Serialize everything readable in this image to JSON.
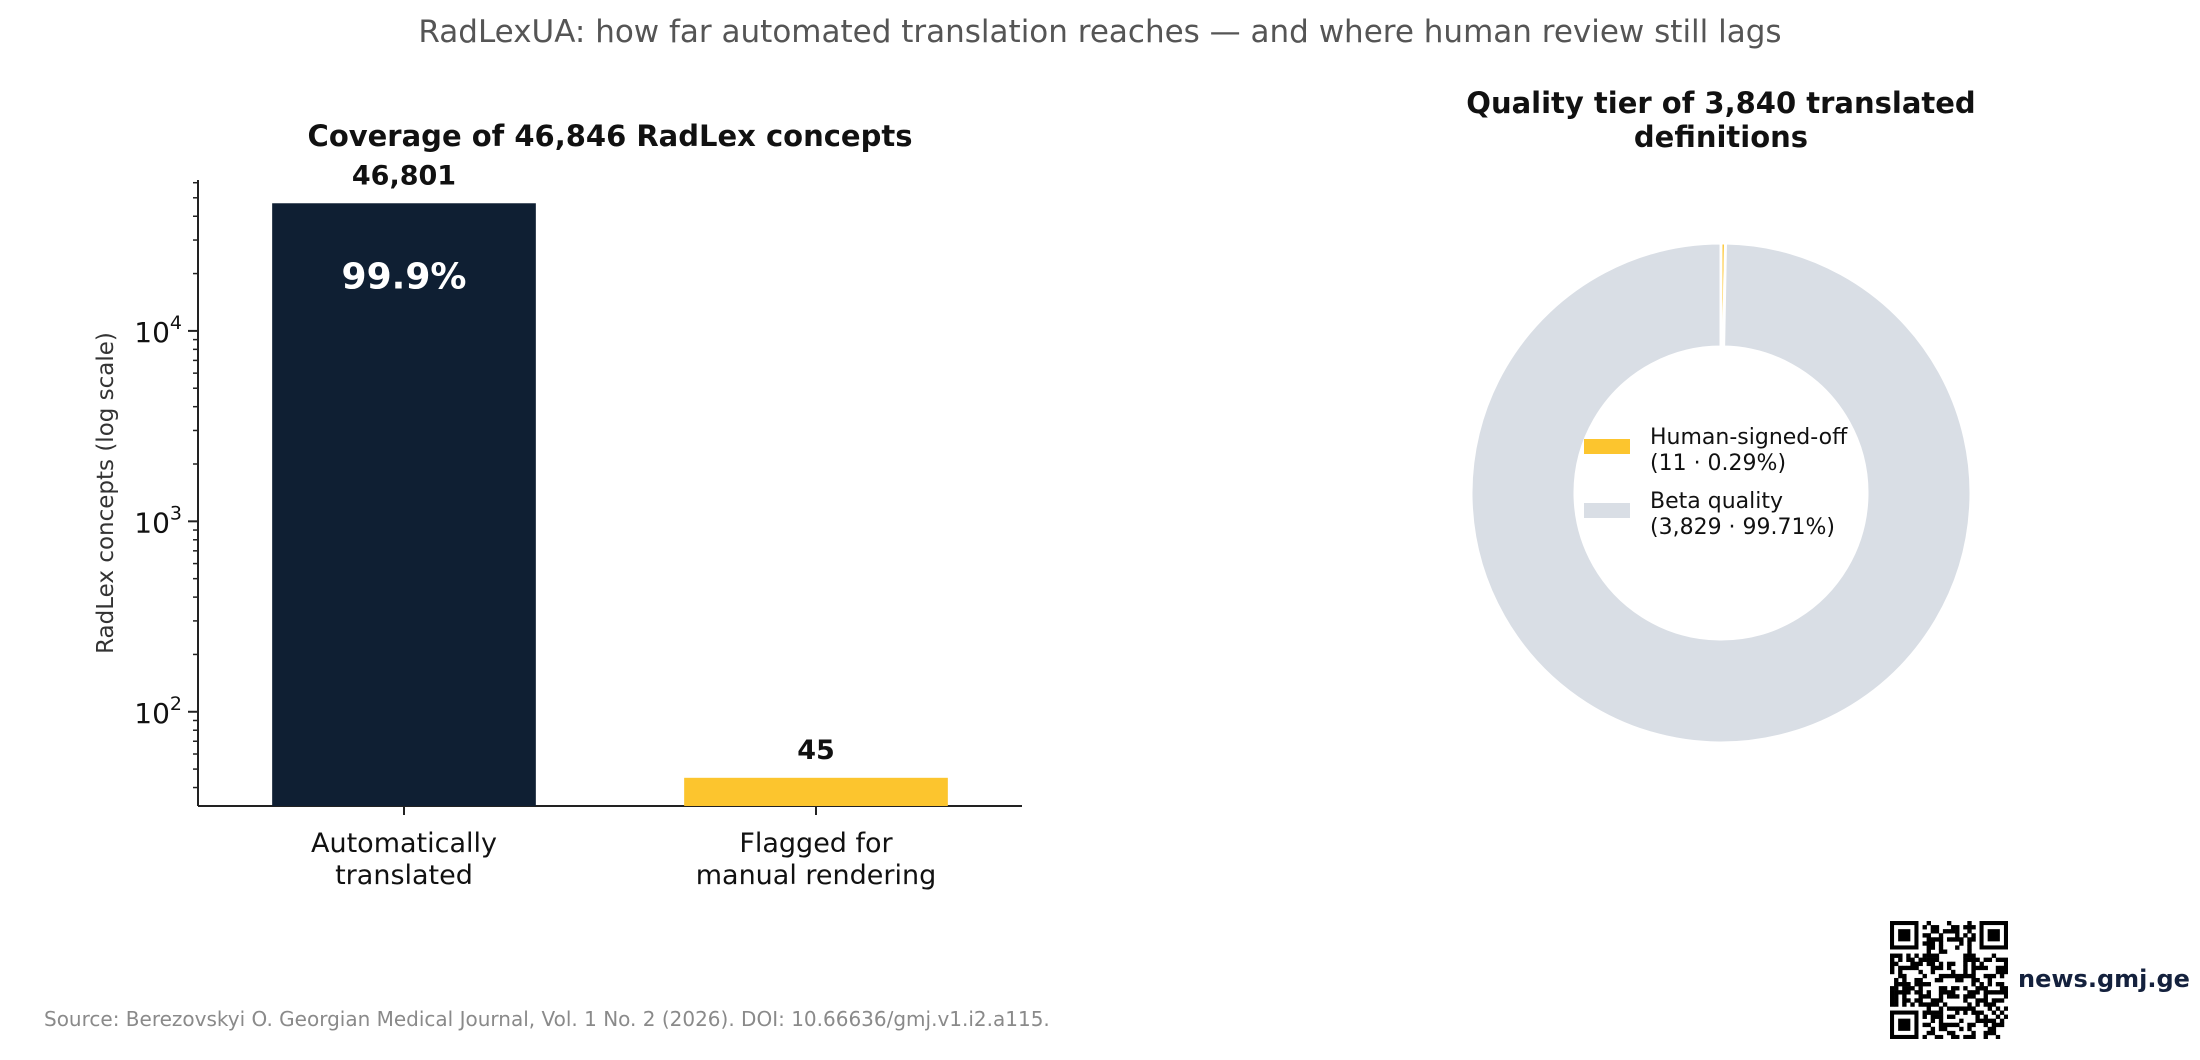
{
  "suptitle": "RadLexUA: how far automated translation reaches — and where human review still lags",
  "chart_data": [
    {
      "type": "bar",
      "title": "Coverage of 46,846 RadLex concepts",
      "ylabel": "RadLex concepts (log scale)",
      "yscale": "log",
      "ylim": [
        32,
        62000
      ],
      "yticks": [
        {
          "value": 100,
          "base": "10",
          "exp": "2"
        },
        {
          "value": 1000,
          "base": "10",
          "exp": "3"
        },
        {
          "value": 10000,
          "base": "10",
          "exp": "4"
        }
      ],
      "categories": [
        [
          "Automatically",
          "translated"
        ],
        [
          "Flagged for",
          "manual rendering"
        ]
      ],
      "values": [
        46801,
        45
      ],
      "value_labels": [
        "46,801",
        "45"
      ],
      "inner_labels": [
        "99.9%",
        ""
      ],
      "colors": [
        "#0f1f33",
        "#fcc52e"
      ],
      "grid": false
    },
    {
      "type": "pie",
      "title": [
        "Quality tier of 3,840 translated",
        "definitions"
      ],
      "donut": true,
      "slices": [
        {
          "label": [
            "Human-signed-off",
            "(11 · 0.29%)"
          ],
          "value": 11,
          "color": "#fcc52e"
        },
        {
          "label": [
            "Beta quality",
            "(3,829 · 99.71%)"
          ],
          "value": 3829,
          "color": "#d9dee5"
        }
      ],
      "legend": "center"
    }
  ],
  "source": "Source: Berezovskyi O. Georgian Medical Journal, Vol. 1 No. 2 (2026). DOI: 10.66636/gmj.v1.i2.a115.",
  "brand": {
    "site": "news.gmj.ge",
    "qr_icon": "qr-code-icon"
  }
}
